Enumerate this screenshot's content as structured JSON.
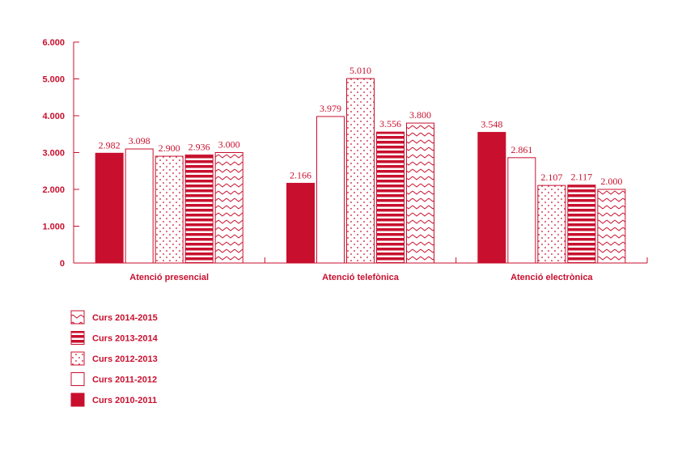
{
  "chart_data": {
    "type": "bar",
    "categories": [
      "Atenció presencial",
      "Atenció telefònica",
      "Atenció electrònica"
    ],
    "series": [
      {
        "name": "Curs 2010-2011",
        "values": [
          2982,
          2166,
          3548
        ],
        "labels": [
          "2.982",
          "2.166",
          "3.548"
        ],
        "pattern": "solid"
      },
      {
        "name": "Curs 2011-2012",
        "values": [
          3098,
          3979,
          2861
        ],
        "labels": [
          "3.098",
          "3.979",
          "2.861"
        ],
        "pattern": "empty"
      },
      {
        "name": "Curs 2012-2013",
        "values": [
          2900,
          5010,
          2107
        ],
        "labels": [
          "2.900",
          "5.010",
          "2.107"
        ],
        "pattern": "dots"
      },
      {
        "name": "Curs 2013-2014",
        "values": [
          2936,
          3556,
          2117
        ],
        "labels": [
          "2.936",
          "3.556",
          "2.117"
        ],
        "pattern": "stripes"
      },
      {
        "name": "Curs 2014-2015",
        "values": [
          3000,
          3800,
          2000
        ],
        "labels": [
          "3.000",
          "3.800",
          "2.000"
        ],
        "pattern": "zigzag"
      }
    ],
    "yticks": [
      0,
      1000,
      2000,
      3000,
      4000,
      5000,
      6000
    ],
    "ytick_labels": [
      "0",
      "1.000",
      "2.000",
      "3.000",
      "4.000",
      "5.000",
      "6.000"
    ],
    "ylim": [
      0,
      6000
    ],
    "legend_order": [
      "Curs 2014-2015",
      "Curs 2013-2014",
      "Curs 2012-2013",
      "Curs 2011-2012",
      "Curs 2010-2011"
    ],
    "legend_position": "bottom-left",
    "color": "#c8102e",
    "grid": false
  }
}
